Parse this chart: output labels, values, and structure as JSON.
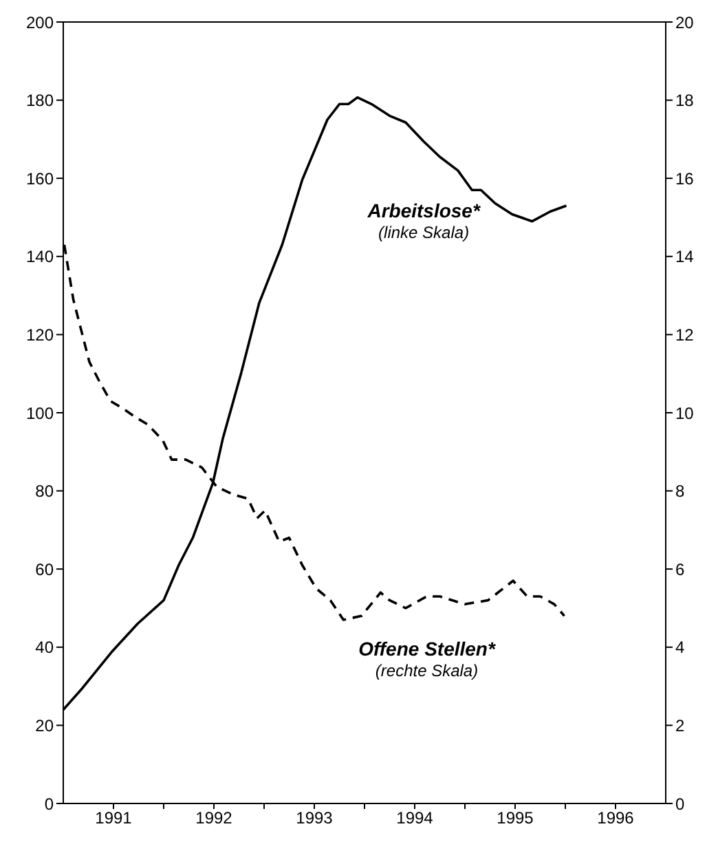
{
  "chart_data": {
    "type": "line",
    "xlim": [
      1991,
      1997
    ],
    "xticks": [
      {
        "value": 1991.5,
        "label": "1991"
      },
      {
        "value": 1992,
        "label": null
      },
      {
        "value": 1992.5,
        "label": "1992"
      },
      {
        "value": 1993,
        "label": null
      },
      {
        "value": 1993.5,
        "label": "1993"
      },
      {
        "value": 1994,
        "label": null
      },
      {
        "value": 1994.5,
        "label": "1994"
      },
      {
        "value": 1995,
        "label": null
      },
      {
        "value": 1995.5,
        "label": "1995"
      },
      {
        "value": 1996,
        "label": null
      },
      {
        "value": 1996.5,
        "label": "1996"
      }
    ],
    "ylim": [
      0,
      200
    ],
    "yticks": [
      0,
      20,
      40,
      60,
      80,
      100,
      120,
      140,
      160,
      180,
      200
    ],
    "y2lim": [
      0,
      20
    ],
    "y2ticks": [
      0,
      2,
      4,
      6,
      8,
      10,
      12,
      14,
      16,
      18,
      20
    ],
    "series": [
      {
        "name": "Arbeitslose*",
        "color": "#000000",
        "line_style": "solid",
        "axis": "y",
        "x": [
          1991.0,
          1991.19,
          1991.49,
          1991.74,
          1992.0,
          1992.15,
          1992.29,
          1992.49,
          1992.59,
          1992.77,
          1992.95,
          1993.18,
          1993.38,
          1993.63,
          1993.75,
          1993.84,
          1993.93,
          1994.07,
          1994.25,
          1994.41,
          1994.59,
          1994.75,
          1994.93,
          1995.07,
          1995.16,
          1995.3,
          1995.47,
          1995.67,
          1995.85,
          1996.01
        ],
        "values": [
          24,
          29.5,
          39,
          46,
          52,
          61,
          68,
          82,
          93.5,
          110,
          128,
          143,
          159.6,
          175,
          179,
          179,
          180.7,
          179,
          176,
          174.3,
          169.4,
          165.5,
          162,
          157,
          157,
          153.6,
          150.8,
          149,
          151.5,
          153
        ]
      },
      {
        "name": "Offene Stellen*",
        "color": "#000000",
        "line_style": "dashed",
        "axis": "y2",
        "x": [
          1991.01,
          1991.1,
          1991.19,
          1991.26,
          1991.36,
          1991.47,
          1991.6,
          1991.71,
          1991.84,
          1991.99,
          1992.08,
          1992.22,
          1992.38,
          1992.53,
          1992.7,
          1992.84,
          1992.93,
          1993.01,
          1993.15,
          1993.25,
          1993.38,
          1993.52,
          1993.66,
          1993.79,
          1993.97,
          1994.16,
          1994.25,
          1994.41,
          1994.62,
          1994.75,
          1995.0,
          1995.23,
          1995.48,
          1995.62,
          1995.75,
          1995.89,
          1995.99
        ],
        "values": [
          14.3,
          12.9,
          12.0,
          11.3,
          10.8,
          10.3,
          10.1,
          9.9,
          9.7,
          9.3,
          8.8,
          8.8,
          8.6,
          8.1,
          7.9,
          7.8,
          7.3,
          7.5,
          6.7,
          6.8,
          6.1,
          5.5,
          5.2,
          4.7,
          4.8,
          5.4,
          5.2,
          5.0,
          5.3,
          5.3,
          5.1,
          5.2,
          5.7,
          5.3,
          5.3,
          5.1,
          4.8
        ]
      }
    ],
    "annotations": [
      "(linke Skala)",
      "(rechte Skala)"
    ]
  }
}
